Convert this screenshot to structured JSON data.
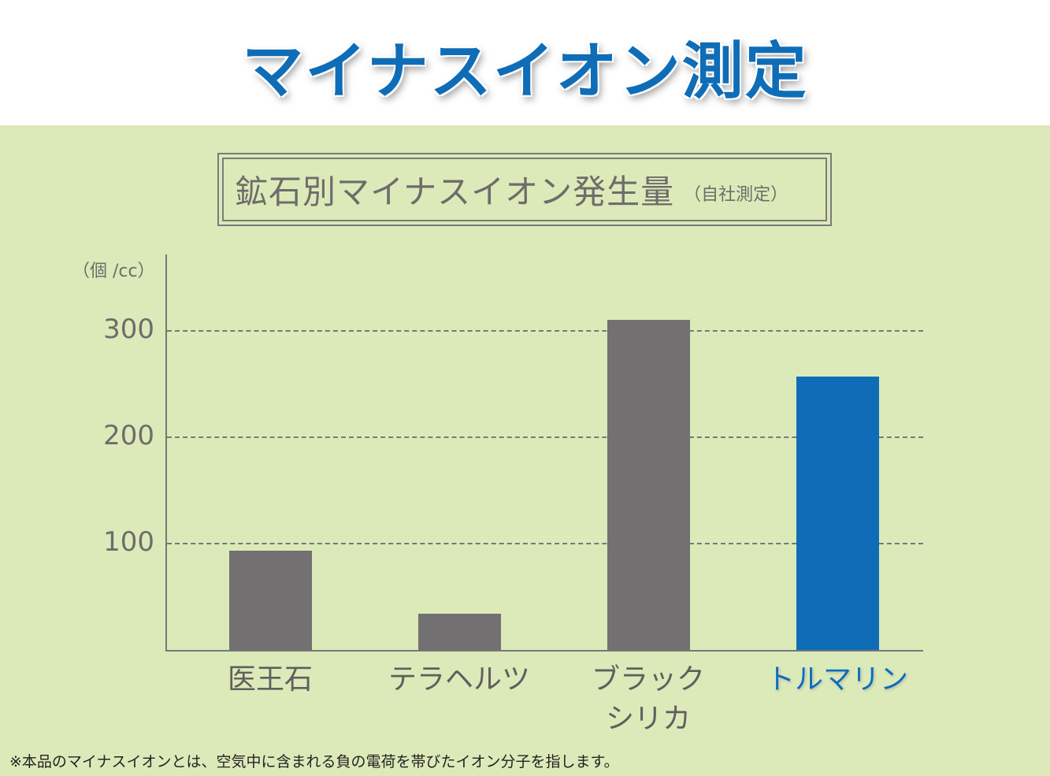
{
  "header": {
    "title": "マイナスイオン測定"
  },
  "chart_box": {
    "title": "鉱石別マイナスイオン発生量",
    "subtitle": "（自社測定）"
  },
  "axis": {
    "unit": "（個 /cc）",
    "ticks": [
      "300",
      "200",
      "100"
    ]
  },
  "footnote": "※本品のマイナスイオンとは、空気中に含まれる負の電荷を帯びたイオン分子を指します。",
  "colors": {
    "accent": "#0f6db7",
    "bar": "#727071",
    "panel_bg": "#dceab9",
    "text": "#6d6d6b"
  },
  "chart_data": {
    "type": "bar",
    "title": "鉱石別マイナスイオン発生量（自社測定）",
    "xlabel": "",
    "ylabel": "（個 /cc）",
    "categories": [
      "医王石",
      "テラヘルツ",
      "ブラックシリカ",
      "トルマリン"
    ],
    "category_labels": [
      [
        "医王石"
      ],
      [
        "テラヘルツ"
      ],
      [
        "ブラック",
        "シリカ"
      ],
      [
        "トルマリン"
      ]
    ],
    "values": [
      94,
      35,
      311,
      258
    ],
    "highlight": "トルマリン",
    "bar_colors": [
      "#727071",
      "#727071",
      "#727071",
      "#0f6db7"
    ],
    "yticks": [
      100,
      200,
      300
    ],
    "ylim": [
      0,
      370
    ],
    "grid": "dashed horizontal at ticks",
    "legend": "none"
  }
}
